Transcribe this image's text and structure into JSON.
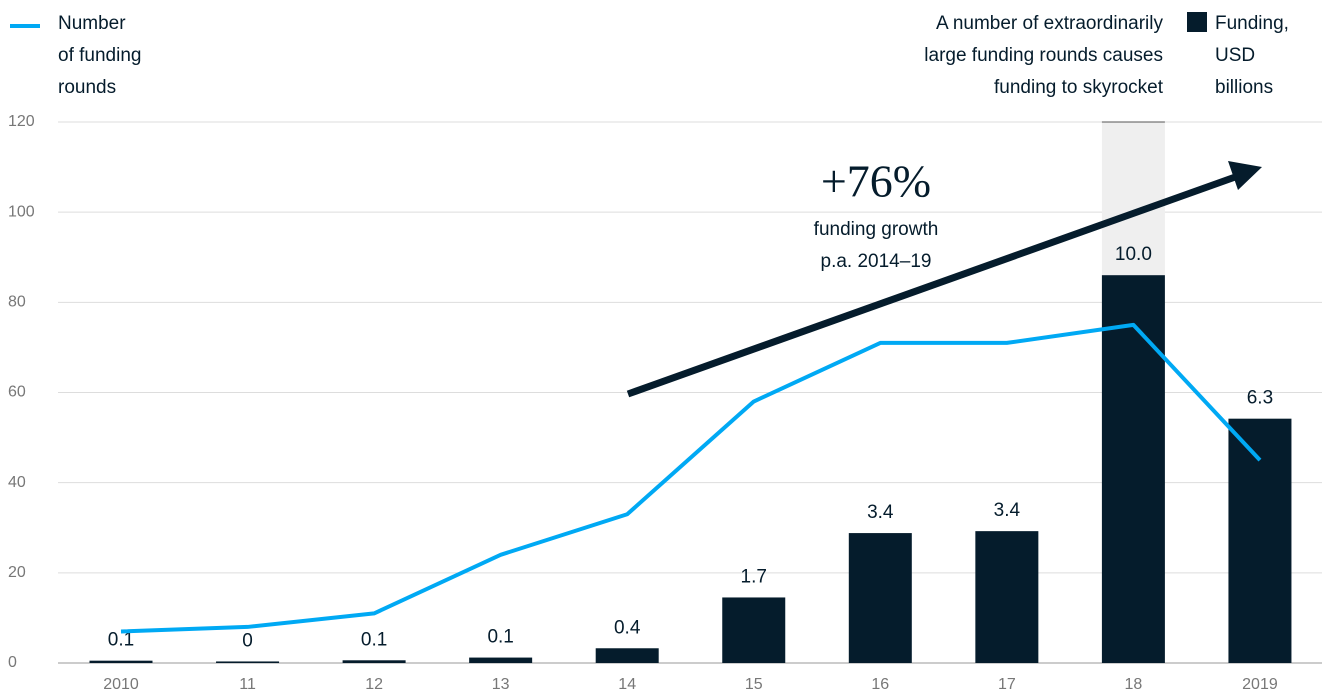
{
  "chart_data": {
    "type": "bar-line",
    "categories": [
      "2010",
      "11",
      "12",
      "13",
      "14",
      "15",
      "16",
      "17",
      "18",
      "2019"
    ],
    "series": [
      {
        "name": "Number\nof funding\nrounds",
        "type": "line",
        "color": "#00a9f4",
        "values": [
          7,
          8,
          11,
          24,
          33,
          58,
          71,
          71,
          75,
          45
        ]
      },
      {
        "name": "Funding,\nUSD\nbillions",
        "type": "bar",
        "axis": "y2",
        "color": "#051c2c",
        "values": [
          0.06,
          0.04,
          0.07,
          0.14,
          0.38,
          1.69,
          3.35,
          3.4,
          10.0,
          6.3
        ],
        "value_labels": [
          "0.1",
          "0",
          "0.1",
          "0.1",
          "0.4",
          "1.7",
          "3.4",
          "3.4",
          "10.0",
          "6.3"
        ]
      }
    ],
    "ylim": [
      0,
      120
    ],
    "yticks": [
      0,
      20,
      40,
      60,
      80,
      100,
      120
    ],
    "y2lim": [
      0,
      13.95
    ],
    "grid": true,
    "annotation": "A number of extraordinarily\nlarge funding rounds causes\nfunding to skyrocket",
    "growth_label": "+76%",
    "growth_text": "funding growth\np.a. 2014–19"
  }
}
